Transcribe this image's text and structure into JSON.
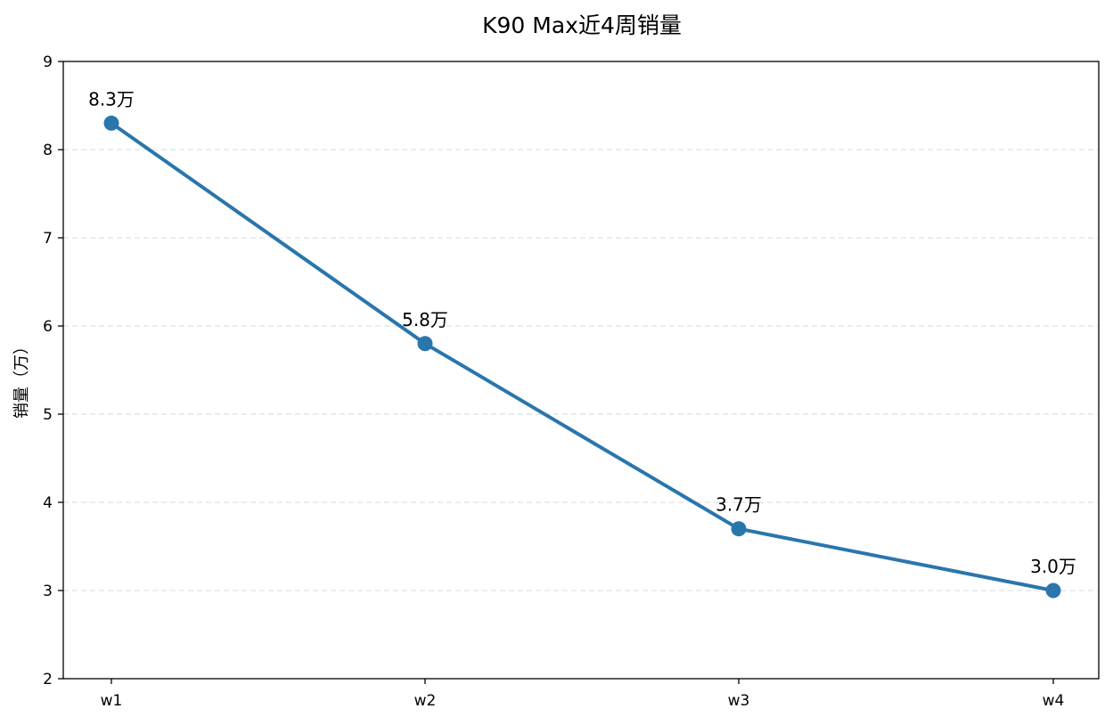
{
  "chart_data": {
    "type": "line",
    "title": "K90 Max近4周销量",
    "xlabel": "",
    "ylabel": "销量（万）",
    "categories": [
      "w1",
      "w2",
      "w3",
      "w4"
    ],
    "series": [
      {
        "values": [
          8.3,
          5.8,
          3.7,
          3.0
        ],
        "labels": [
          "8.3万",
          "5.8万",
          "3.7万",
          "3.0万"
        ],
        "color": "#2976ad"
      }
    ],
    "ylim": [
      2,
      9
    ],
    "yticks": [
      "2",
      "3",
      "4",
      "5",
      "6",
      "7",
      "8",
      "9"
    ],
    "grid": true,
    "legend": "none"
  }
}
